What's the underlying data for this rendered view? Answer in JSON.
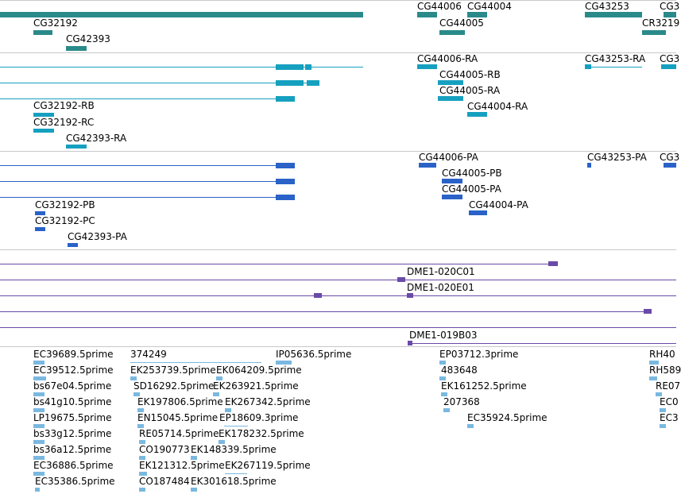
{
  "colors": {
    "gene": "#2a8a8a",
    "transcript": "#16a0c0",
    "protein": "#2a62c8",
    "clone": "#6a4aa8",
    "est": "#7ab8e0",
    "divider": "#c8c8c8"
  },
  "genes": {
    "labels": [
      "CG32192",
      "CG42393",
      "CG44006",
      "CG44004",
      "CG44005",
      "CG43253",
      "CG3",
      "CR3219"
    ]
  },
  "transcripts": {
    "labels": [
      "CG32192-RB",
      "CG32192-RC",
      "CG42393-RA",
      "CG44006-RA",
      "CG44005-RB",
      "CG44005-RA",
      "CG44004-RA",
      "CG43253-RA",
      "CG3"
    ]
  },
  "proteins": {
    "labels": [
      "CG32192-PB",
      "CG32192-PC",
      "CG42393-PA",
      "CG44006-PA",
      "CG44005-PB",
      "CG44005-PA",
      "CG44004-PA",
      "CG43253-PA",
      "CG3"
    ]
  },
  "clones": {
    "labels": [
      "DME1-020C01",
      "DME1-020E01",
      "DME1-019B03"
    ]
  },
  "ests": {
    "labels": [
      "EC39689.5prime",
      "EC39512.5prime",
      "bs67e04.5prime",
      "bs41g10.5prime",
      "LP19675.5prime",
      "bs33g12.5prime",
      "bs36a12.5prime",
      "EC36886.5prime",
      "EC35386.5prime",
      "374249",
      "EK253739.5prime",
      "SD16292.5prime",
      "EK197806.5prime",
      "EN15045.5prime",
      "RE05714.5prime",
      "CO190773",
      "EK121312.5prime",
      "CO187484",
      "EK064209.5prime",
      "EK263921.5prime",
      "EK267342.5prime",
      "EP18609.3prime",
      "EK178232.5prime",
      "EK148339.5prime",
      "EK267119.5prime",
      "EK301618.5prime",
      "IP05636.5prime",
      "EP03712.3prime",
      "483648",
      "EK161252.5prime",
      "207368",
      "EC35924.5prime",
      "RH40",
      "RH589",
      "RE07",
      "EC0",
      "EC3"
    ]
  }
}
